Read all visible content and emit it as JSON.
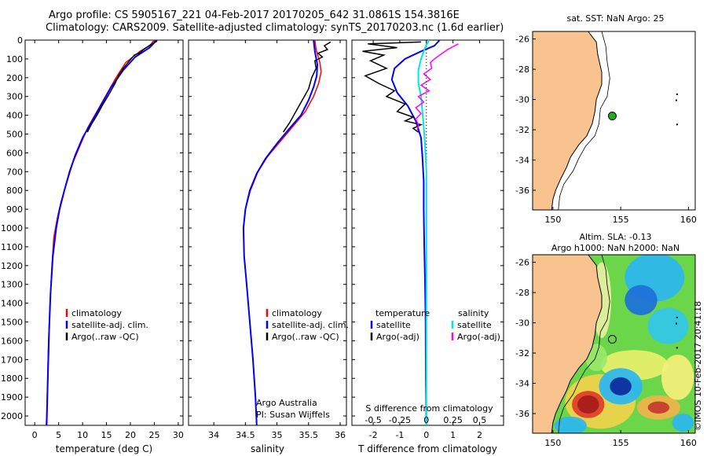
{
  "header": {
    "line1": "Argo profile: CS 5905167_221 04-Feb-2017 20170205_642 31.0861S 154.3816E",
    "line2": "Climatology: CARS2009. Satellite-adjusted climatology: synTS_20170203.nc (1.6d earlier)"
  },
  "side_label": "©IMOS 10-Feb-2017 20:41:18",
  "colors": {
    "climatology": "#ff0000",
    "satellite": "#0000ff",
    "argo": "#000000",
    "sat_salinity": "#00e5e5",
    "argo_salinity": "#ff00ff",
    "land": "#f9c38f",
    "float_marker": "#22aa22"
  },
  "chart_data": [
    {
      "id": "temperature",
      "type": "line",
      "xlabel": "temperature (deg C)",
      "xlim": [
        -2,
        31
      ],
      "xticks": [
        "0",
        "5",
        "10",
        "15",
        "20",
        "25",
        "30"
      ],
      "xtick_values": [
        0,
        5,
        10,
        15,
        20,
        25,
        30
      ],
      "ylim": [
        0,
        2050
      ],
      "yticks": [
        "0",
        "100",
        "200",
        "300",
        "400",
        "500",
        "600",
        "700",
        "800",
        "900",
        "1000",
        "1100",
        "1200",
        "1300",
        "1400",
        "1500",
        "1600",
        "1700",
        "1800",
        "1900",
        "2000"
      ],
      "ytick_values": [
        0,
        100,
        200,
        300,
        400,
        500,
        600,
        700,
        800,
        900,
        1000,
        1100,
        1200,
        1300,
        1400,
        1500,
        1600,
        1700,
        1800,
        1900,
        2000
      ],
      "legend": [
        "climatology",
        "satellite-adj. clim.",
        "Argo(..raw -QC)"
      ],
      "series": [
        {
          "name": "climatology",
          "color": "#ff0000",
          "points": [
            [
              25,
              0
            ],
            [
              24,
              30
            ],
            [
              22,
              60
            ],
            [
              19,
              120
            ],
            [
              17,
              200
            ],
            [
              15,
              290
            ],
            [
              13,
              380
            ],
            [
              11,
              470
            ],
            [
              9.5,
              560
            ],
            [
              8,
              650
            ],
            [
              6.8,
              750
            ],
            [
              5.5,
              860
            ],
            [
              4.7,
              950
            ],
            [
              4,
              1050
            ],
            [
              3.6,
              1200
            ],
            [
              3.2,
              1400
            ],
            [
              2.9,
              1600
            ],
            [
              2.7,
              1800
            ],
            [
              2.5,
              2000
            ],
            [
              2.4,
              2050
            ]
          ]
        },
        {
          "name": "satellite-adj. clim.",
          "color": "#0000ff",
          "points": [
            [
              25.5,
              0
            ],
            [
              24,
              40
            ],
            [
              21,
              90
            ],
            [
              18.5,
              160
            ],
            [
              16,
              250
            ],
            [
              14,
              340
            ],
            [
              12,
              430
            ],
            [
              10,
              520
            ],
            [
              8.5,
              610
            ],
            [
              7.3,
              700
            ],
            [
              6.2,
              800
            ],
            [
              5.2,
              900
            ],
            [
              4.5,
              1000
            ],
            [
              3.8,
              1150
            ],
            [
              3.3,
              1350
            ],
            [
              3,
              1550
            ],
            [
              2.8,
              1750
            ],
            [
              2.6,
              1950
            ],
            [
              2.5,
              2050
            ]
          ]
        },
        {
          "name": "Argo(..raw -QC)",
          "color": "#000000",
          "points": [
            [
              25.6,
              5
            ],
            [
              24.5,
              20
            ],
            [
              23,
              45
            ],
            [
              21.8,
              70
            ],
            [
              20.8,
              80
            ],
            [
              19.8,
              110
            ],
            [
              18.5,
              150
            ],
            [
              17.5,
              190
            ],
            [
              16.8,
              230
            ],
            [
              15.5,
              290
            ],
            [
              14.3,
              340
            ],
            [
              13,
              400
            ],
            [
              11.8,
              450
            ],
            [
              11,
              490
            ]
          ]
        }
      ]
    },
    {
      "id": "salinity",
      "type": "line",
      "xlabel": "salinity",
      "xlim": [
        33.6,
        36.1
      ],
      "xticks": [
        "34",
        "34.5",
        "35",
        "35.5",
        "36"
      ],
      "xtick_values": [
        34,
        34.5,
        35,
        35.5,
        36
      ],
      "ylim": [
        0,
        2050
      ],
      "legend": [
        "climatology",
        "satellite-adj. clim.",
        "Argo(..raw -QC)"
      ],
      "annotation": [
        "Argo Australia",
        "PI: Susan Wijffels"
      ],
      "series": [
        {
          "name": "climatology",
          "color": "#ff0000",
          "points": [
            [
              35.6,
              0
            ],
            [
              35.62,
              50
            ],
            [
              35.68,
              120
            ],
            [
              35.7,
              170
            ],
            [
              35.66,
              230
            ],
            [
              35.58,
              300
            ],
            [
              35.45,
              380
            ],
            [
              35.25,
              460
            ],
            [
              35.05,
              540
            ],
            [
              34.85,
              620
            ],
            [
              34.7,
              700
            ],
            [
              34.58,
              800
            ],
            [
              34.5,
              900
            ],
            [
              34.47,
              1000
            ],
            [
              34.48,
              1150
            ],
            [
              34.52,
              1300
            ],
            [
              34.57,
              1500
            ],
            [
              34.62,
              1700
            ],
            [
              34.66,
              1900
            ],
            [
              34.68,
              2050
            ]
          ]
        },
        {
          "name": "satellite-adj. clim.",
          "color": "#0000ff",
          "points": [
            [
              35.58,
              0
            ],
            [
              35.6,
              60
            ],
            [
              35.64,
              130
            ],
            [
              35.63,
              190
            ],
            [
              35.58,
              250
            ],
            [
              35.5,
              320
            ],
            [
              35.38,
              400
            ],
            [
              35.2,
              470
            ],
            [
              35,
              550
            ],
            [
              34.82,
              630
            ],
            [
              34.68,
              710
            ],
            [
              34.57,
              800
            ],
            [
              34.5,
              900
            ],
            [
              34.47,
              1000
            ],
            [
              34.48,
              1150
            ],
            [
              34.52,
              1300
            ],
            [
              34.57,
              1500
            ],
            [
              34.62,
              1700
            ],
            [
              34.66,
              1900
            ],
            [
              34.68,
              2050
            ]
          ]
        },
        {
          "name": "Argo(..raw -QC)",
          "color": "#000000",
          "points": [
            [
              35.85,
              10
            ],
            [
              35.75,
              30
            ],
            [
              35.8,
              50
            ],
            [
              35.65,
              70
            ],
            [
              35.72,
              90
            ],
            [
              35.6,
              110
            ],
            [
              35.62,
              150
            ],
            [
              35.55,
              200
            ],
            [
              35.5,
              260
            ],
            [
              35.4,
              320
            ],
            [
              35.3,
              380
            ],
            [
              35.2,
              440
            ],
            [
              35.1,
              490
            ]
          ]
        }
      ]
    },
    {
      "id": "difference",
      "type": "line",
      "xlabel": "T difference from climatology",
      "xlabel_top": "S difference from climatology",
      "xlim": [
        -2.8,
        2.9
      ],
      "xticks": [
        "-2",
        "-1",
        "0",
        "1",
        "2"
      ],
      "xtick_values": [
        -2,
        -1,
        0,
        1,
        2
      ],
      "xticks_s": [
        "-0.5",
        "-0.25",
        "0",
        "0.25",
        "0.5"
      ],
      "xtick_s_values": [
        -2,
        -1,
        0,
        1,
        2
      ],
      "ylim": [
        0,
        2050
      ],
      "legend_temperature_title": "temperature",
      "legend_salinity_title": "salinity",
      "legend": [
        "satellite",
        "Argo(-adj)",
        "satellite",
        "Argo(-adj)"
      ],
      "series": [
        {
          "name": "satellite",
          "color": "#0000ff",
          "points": [
            [
              0.5,
              0
            ],
            [
              0.3,
              30
            ],
            [
              -0.2,
              60
            ],
            [
              -0.8,
              100
            ],
            [
              -1.2,
              150
            ],
            [
              -1.3,
              210
            ],
            [
              -1.1,
              280
            ],
            [
              -0.7,
              350
            ],
            [
              -0.4,
              430
            ],
            [
              -0.2,
              520
            ],
            [
              -0.15,
              620
            ],
            [
              -0.1,
              750
            ],
            [
              -0.1,
              900
            ],
            [
              -0.08,
              1100
            ],
            [
              -0.05,
              1300
            ],
            [
              -0.03,
              1500
            ],
            [
              -0.02,
              1800
            ],
            [
              0,
              2050
            ]
          ]
        },
        {
          "name": "Argo(-adj)",
          "color": "#000000",
          "points": [
            [
              -0.2,
              10
            ],
            [
              -2.2,
              20
            ],
            [
              -1.1,
              40
            ],
            [
              -2.4,
              60
            ],
            [
              -1.6,
              80
            ],
            [
              -2.1,
              110
            ],
            [
              -1.5,
              150
            ],
            [
              -2.3,
              190
            ],
            [
              -1.8,
              230
            ],
            [
              -1.2,
              270
            ],
            [
              -1.5,
              300
            ],
            [
              -0.8,
              340
            ],
            [
              -1.1,
              380
            ],
            [
              -0.5,
              410
            ],
            [
              -0.8,
              430
            ],
            [
              -0.2,
              450
            ],
            [
              -0.5,
              470
            ],
            [
              -0.3,
              490
            ]
          ]
        },
        {
          "name": "satellite",
          "color": "#00e5e5",
          "points": [
            [
              0.1,
              0
            ],
            [
              -0.05,
              40
            ],
            [
              -0.2,
              100
            ],
            [
              -0.3,
              160
            ],
            [
              -0.3,
              230
            ],
            [
              -0.2,
              300
            ],
            [
              -0.15,
              380
            ],
            [
              -0.1,
              460
            ],
            [
              -0.05,
              560
            ],
            [
              0,
              700
            ],
            [
              0,
              900
            ],
            [
              0,
              1200
            ],
            [
              0,
              1500
            ],
            [
              0,
              1800
            ],
            [
              0,
              2050
            ]
          ]
        },
        {
          "name": "Argo(-adj)",
          "color": "#ff00ff",
          "points": [
            [
              1.2,
              20
            ],
            [
              0.8,
              50
            ],
            [
              0.5,
              80
            ],
            [
              0.3,
              100
            ],
            [
              0.15,
              120
            ],
            [
              0.2,
              150
            ],
            [
              -0.1,
              180
            ],
            [
              0.15,
              210
            ],
            [
              -0.2,
              240
            ],
            [
              0.1,
              270
            ],
            [
              -0.3,
              300
            ],
            [
              -0.1,
              330
            ],
            [
              -0.4,
              360
            ],
            [
              -0.2,
              390
            ],
            [
              -0.4,
              420
            ],
            [
              -0.3,
              450
            ],
            [
              -0.35,
              480
            ]
          ]
        }
      ]
    }
  ],
  "maps": [
    {
      "id": "sst-map",
      "title": [
        "sat. SST: NaN Argo: 25"
      ],
      "xticks": [
        "150",
        "155",
        "160"
      ],
      "yticks": [
        "-26",
        "-28",
        "-30",
        "-32",
        "-34",
        "-36"
      ],
      "xlim": [
        148.5,
        160.5
      ],
      "ylim": [
        -37.3,
        -25.5
      ],
      "float_lon": 154.38,
      "float_lat": -31.09
    },
    {
      "id": "sla-map",
      "title": [
        "Altim. SLA: -0.13",
        "Argo h1000: NaN h2000: NaN"
      ],
      "xticks": [
        "150",
        "155",
        "160"
      ],
      "yticks": [
        "-26",
        "-28",
        "-30",
        "-32",
        "-34",
        "-36"
      ],
      "xlim": [
        148.5,
        160.5
      ],
      "ylim": [
        -37.3,
        -25.5
      ],
      "float_lon": 154.38,
      "float_lat": -31.09
    }
  ]
}
